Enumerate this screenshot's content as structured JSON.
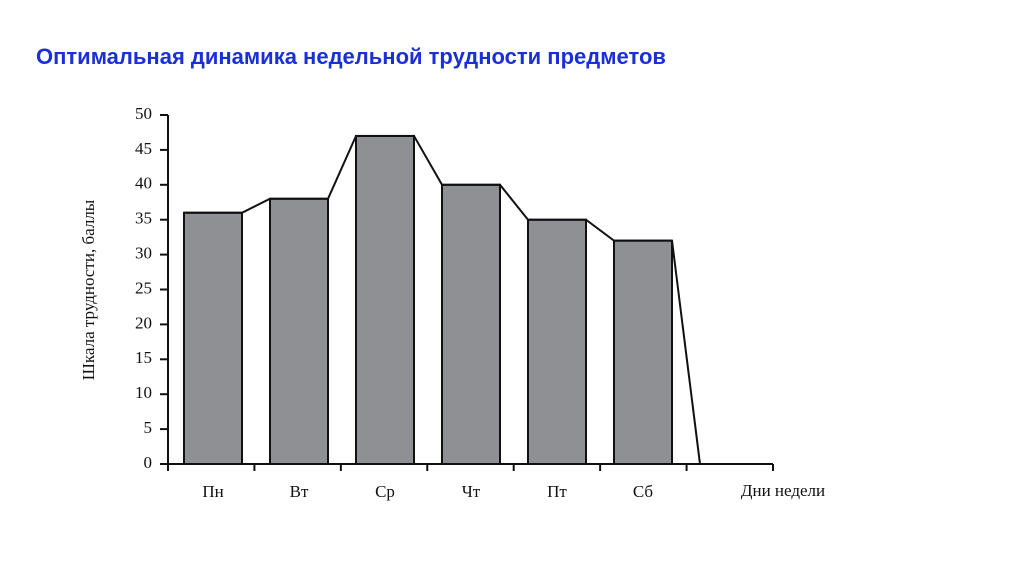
{
  "chart_data": {
    "type": "bar",
    "title": "Оптимальная динамика недельной трудности предметов",
    "y_label": "Шкала трудности, баллы",
    "x_label": "Дни недели",
    "categories": [
      "Пн",
      "Вт",
      "Ср",
      "Чт",
      "Пт",
      "Сб"
    ],
    "values": [
      36,
      38,
      47,
      40,
      35,
      32
    ],
    "color": "#8f9093",
    "ylim": [
      0,
      50
    ],
    "yticks": [
      0,
      5,
      10,
      15,
      20,
      25,
      30,
      35,
      40,
      45,
      50
    ]
  }
}
